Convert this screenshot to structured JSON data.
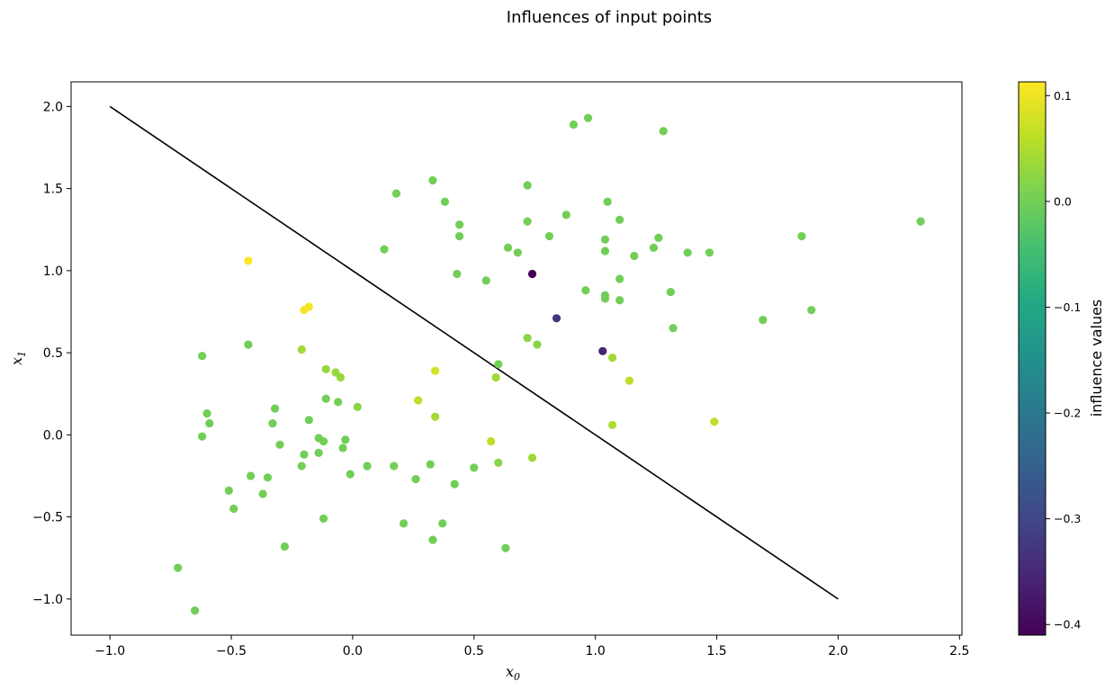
{
  "chart_data": {
    "type": "scatter",
    "title": "Influences of input points",
    "xlabel_base": "x",
    "xlabel_sub": "0",
    "ylabel_base": "x",
    "ylabel_sub": "1",
    "xlim": [
      -1.16,
      2.51
    ],
    "ylim": [
      -1.22,
      2.15
    ],
    "xticks": [
      -1.0,
      -0.5,
      0.0,
      0.5,
      1.0,
      1.5,
      2.0,
      2.5
    ],
    "xtick_labels": [
      "−1.0",
      "−0.5",
      "0.0",
      "0.5",
      "1.0",
      "1.5",
      "2.0",
      "2.5"
    ],
    "yticks": [
      -1.0,
      -0.5,
      0.0,
      0.5,
      1.0,
      1.5,
      2.0
    ],
    "ytick_labels": [
      "−1.0",
      "−0.5",
      "0.0",
      "0.5",
      "1.0",
      "1.5",
      "2.0"
    ],
    "grid": false,
    "colormap": "viridis",
    "colorbar": {
      "label": "influence values",
      "min": -0.41,
      "max": 0.113,
      "ticks": [
        0.1,
        0.0,
        -0.1,
        -0.2,
        -0.3,
        -0.4
      ],
      "tick_labels": [
        "0.1",
        "0.0",
        "−0.1",
        "−0.2",
        "−0.3",
        "−0.4"
      ]
    },
    "line": {
      "x": [
        -1.0,
        2.0
      ],
      "y": [
        2.0,
        -1.0
      ],
      "color": "#000000"
    },
    "points": [
      {
        "x": 0.91,
        "y": 1.89,
        "v": 0.0
      },
      {
        "x": 0.97,
        "y": 1.93,
        "v": 0.0
      },
      {
        "x": 1.28,
        "y": 1.85,
        "v": 0.0
      },
      {
        "x": 0.33,
        "y": 1.55,
        "v": 0.0
      },
      {
        "x": 0.72,
        "y": 1.52,
        "v": 0.0
      },
      {
        "x": 0.18,
        "y": 1.47,
        "v": 0.0
      },
      {
        "x": 0.38,
        "y": 1.42,
        "v": 0.0
      },
      {
        "x": 1.05,
        "y": 1.42,
        "v": 0.0
      },
      {
        "x": 0.88,
        "y": 1.34,
        "v": 0.0
      },
      {
        "x": 1.1,
        "y": 1.31,
        "v": 0.0
      },
      {
        "x": 2.34,
        "y": 1.3,
        "v": 0.0
      },
      {
        "x": 0.72,
        "y": 1.3,
        "v": 0.0
      },
      {
        "x": 0.44,
        "y": 1.28,
        "v": 0.0
      },
      {
        "x": 0.81,
        "y": 1.21,
        "v": 0.0
      },
      {
        "x": 1.85,
        "y": 1.21,
        "v": 0.0
      },
      {
        "x": 1.26,
        "y": 1.2,
        "v": 0.0
      },
      {
        "x": 0.44,
        "y": 1.21,
        "v": 0.0
      },
      {
        "x": 1.04,
        "y": 1.19,
        "v": 0.0
      },
      {
        "x": 0.64,
        "y": 1.14,
        "v": 0.0
      },
      {
        "x": 1.24,
        "y": 1.14,
        "v": 0.0
      },
      {
        "x": 0.13,
        "y": 1.13,
        "v": 0.0
      },
      {
        "x": 0.68,
        "y": 1.11,
        "v": 0.0
      },
      {
        "x": 1.04,
        "y": 1.12,
        "v": 0.0
      },
      {
        "x": 1.38,
        "y": 1.11,
        "v": 0.0
      },
      {
        "x": 1.47,
        "y": 1.11,
        "v": 0.0
      },
      {
        "x": 1.16,
        "y": 1.09,
        "v": 0.0
      },
      {
        "x": -0.43,
        "y": 1.06,
        "v": 0.113
      },
      {
        "x": 0.43,
        "y": 0.98,
        "v": 0.0
      },
      {
        "x": 0.74,
        "y": 0.98,
        "v": -0.41
      },
      {
        "x": 1.1,
        "y": 0.95,
        "v": 0.0
      },
      {
        "x": 0.55,
        "y": 0.94,
        "v": 0.0
      },
      {
        "x": 0.96,
        "y": 0.88,
        "v": 0.0
      },
      {
        "x": 1.31,
        "y": 0.87,
        "v": 0.0
      },
      {
        "x": 1.04,
        "y": 0.85,
        "v": 0.0
      },
      {
        "x": 1.04,
        "y": 0.83,
        "v": 0.0
      },
      {
        "x": 1.1,
        "y": 0.82,
        "v": 0.0
      },
      {
        "x": -0.18,
        "y": 0.78,
        "v": 0.105
      },
      {
        "x": -0.2,
        "y": 0.76,
        "v": 0.105
      },
      {
        "x": 0.84,
        "y": 0.71,
        "v": -0.33
      },
      {
        "x": 1.69,
        "y": 0.7,
        "v": 0.0
      },
      {
        "x": 1.89,
        "y": 0.76,
        "v": 0.0
      },
      {
        "x": 1.32,
        "y": 0.65,
        "v": 0.0
      },
      {
        "x": 0.72,
        "y": 0.59,
        "v": 0.02
      },
      {
        "x": 0.76,
        "y": 0.55,
        "v": 0.02
      },
      {
        "x": -0.43,
        "y": 0.55,
        "v": 0.0
      },
      {
        "x": -0.21,
        "y": 0.52,
        "v": 0.04
      },
      {
        "x": 1.03,
        "y": 0.51,
        "v": -0.36
      },
      {
        "x": -0.62,
        "y": 0.48,
        "v": 0.0
      },
      {
        "x": 1.07,
        "y": 0.47,
        "v": 0.04
      },
      {
        "x": 0.6,
        "y": 0.43,
        "v": 0.0
      },
      {
        "x": -0.11,
        "y": 0.4,
        "v": 0.03
      },
      {
        "x": 0.34,
        "y": 0.39,
        "v": 0.08
      },
      {
        "x": -0.07,
        "y": 0.38,
        "v": 0.03
      },
      {
        "x": -0.05,
        "y": 0.35,
        "v": 0.03
      },
      {
        "x": 0.59,
        "y": 0.35,
        "v": 0.04
      },
      {
        "x": 1.14,
        "y": 0.33,
        "v": 0.06
      },
      {
        "x": -0.11,
        "y": 0.22,
        "v": 0.0
      },
      {
        "x": 0.27,
        "y": 0.21,
        "v": 0.06
      },
      {
        "x": -0.06,
        "y": 0.2,
        "v": 0.0
      },
      {
        "x": 0.02,
        "y": 0.17,
        "v": 0.02
      },
      {
        "x": -0.32,
        "y": 0.16,
        "v": 0.0
      },
      {
        "x": -0.6,
        "y": 0.13,
        "v": 0.0
      },
      {
        "x": 0.34,
        "y": 0.11,
        "v": 0.04
      },
      {
        "x": -0.18,
        "y": 0.09,
        "v": 0.0
      },
      {
        "x": -0.59,
        "y": 0.07,
        "v": 0.0
      },
      {
        "x": -0.33,
        "y": 0.07,
        "v": 0.0
      },
      {
        "x": 1.49,
        "y": 0.08,
        "v": 0.06
      },
      {
        "x": 1.07,
        "y": 0.06,
        "v": 0.05
      },
      {
        "x": -0.62,
        "y": -0.01,
        "v": 0.0
      },
      {
        "x": -0.14,
        "y": -0.02,
        "v": 0.0
      },
      {
        "x": -0.03,
        "y": -0.03,
        "v": 0.0
      },
      {
        "x": -0.12,
        "y": -0.04,
        "v": 0.0
      },
      {
        "x": 0.57,
        "y": -0.04,
        "v": 0.06
      },
      {
        "x": -0.3,
        "y": -0.06,
        "v": 0.0
      },
      {
        "x": -0.04,
        "y": -0.08,
        "v": 0.0
      },
      {
        "x": -0.14,
        "y": -0.11,
        "v": 0.0
      },
      {
        "x": -0.2,
        "y": -0.12,
        "v": 0.0
      },
      {
        "x": 0.74,
        "y": -0.14,
        "v": 0.04
      },
      {
        "x": 0.6,
        "y": -0.17,
        "v": 0.02
      },
      {
        "x": 0.32,
        "y": -0.18,
        "v": 0.0
      },
      {
        "x": -0.21,
        "y": -0.19,
        "v": 0.0
      },
      {
        "x": 0.06,
        "y": -0.19,
        "v": 0.0
      },
      {
        "x": 0.17,
        "y": -0.19,
        "v": 0.0
      },
      {
        "x": 0.5,
        "y": -0.2,
        "v": 0.0
      },
      {
        "x": -0.42,
        "y": -0.25,
        "v": 0.0
      },
      {
        "x": -0.01,
        "y": -0.24,
        "v": 0.0
      },
      {
        "x": -0.35,
        "y": -0.26,
        "v": 0.0
      },
      {
        "x": 0.26,
        "y": -0.27,
        "v": 0.0
      },
      {
        "x": 0.42,
        "y": -0.3,
        "v": 0.0
      },
      {
        "x": -0.51,
        "y": -0.34,
        "v": 0.0
      },
      {
        "x": -0.37,
        "y": -0.36,
        "v": 0.0
      },
      {
        "x": -0.49,
        "y": -0.45,
        "v": 0.0
      },
      {
        "x": -0.12,
        "y": -0.51,
        "v": 0.0
      },
      {
        "x": 0.21,
        "y": -0.54,
        "v": 0.0
      },
      {
        "x": 0.37,
        "y": -0.54,
        "v": 0.0
      },
      {
        "x": 0.33,
        "y": -0.64,
        "v": 0.0
      },
      {
        "x": -0.28,
        "y": -0.68,
        "v": 0.0
      },
      {
        "x": 0.63,
        "y": -0.69,
        "v": 0.0
      },
      {
        "x": -0.72,
        "y": -0.81,
        "v": 0.0
      },
      {
        "x": -0.65,
        "y": -1.07,
        "v": 0.0
      }
    ]
  }
}
